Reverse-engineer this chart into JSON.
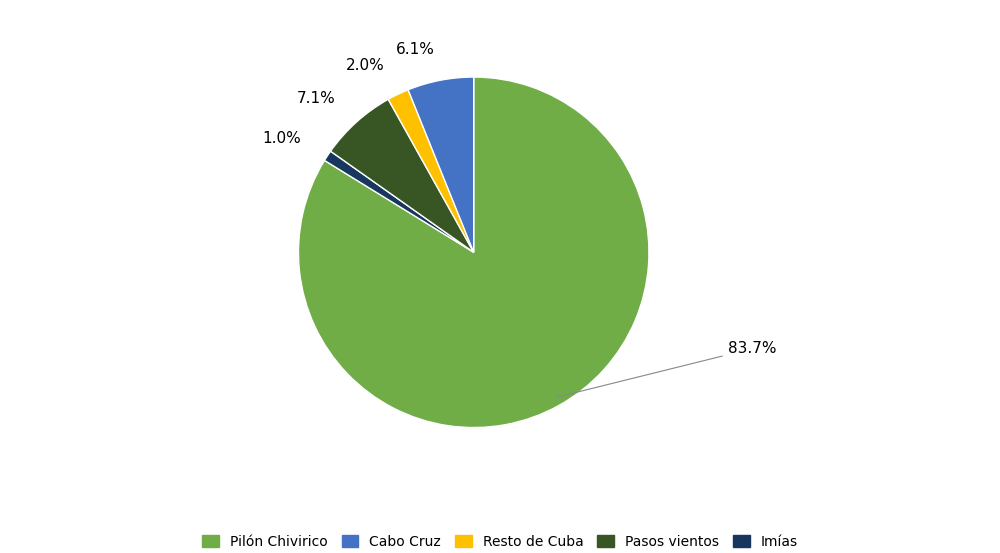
{
  "plot_labels": [
    "Pilón Chivirico",
    "Imías",
    "Pasos vientos",
    "Resto de Cuba",
    "Cabo Cruz"
  ],
  "plot_values": [
    83.7,
    1.0,
    7.1,
    2.0,
    6.1
  ],
  "plot_colors": [
    "#70ad47",
    "#17375e",
    "#375623",
    "#ffc000",
    "#4472c4"
  ],
  "legend_labels": [
    "Pilón Chivirico",
    "Cabo Cruz",
    "Resto de Cuba",
    "Pasos vientos",
    "Imías"
  ],
  "legend_colors": [
    "#70ad47",
    "#4472c4",
    "#ffc000",
    "#375623",
    "#17375e"
  ],
  "startangle": 90,
  "background_color": "#ffffff",
  "label_fontsize": 11,
  "legend_fontsize": 10
}
